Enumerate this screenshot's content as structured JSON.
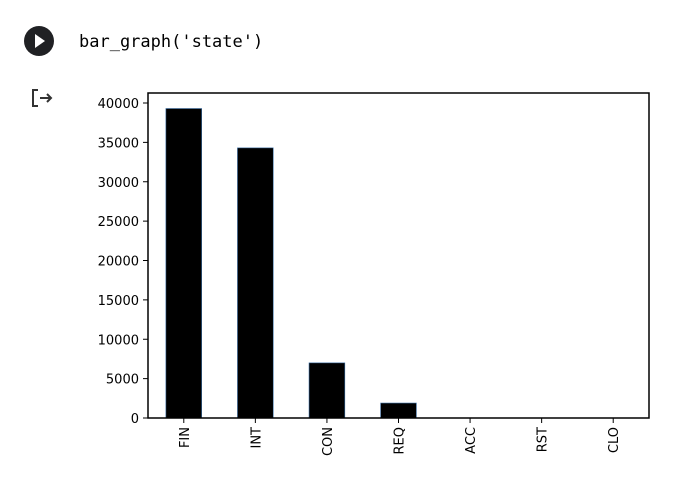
{
  "cell": {
    "code": "bar_graph('state')"
  },
  "chart_data": {
    "type": "bar",
    "categories": [
      "FIN",
      "INT",
      "CON",
      "REQ",
      "ACC",
      "RST",
      "CLO"
    ],
    "values": [
      39300,
      34300,
      7000,
      1900,
      0,
      0,
      0
    ],
    "color": "#000000",
    "ylim": [
      0,
      41270
    ],
    "yticks": [
      0,
      5000,
      10000,
      15000,
      20000,
      25000,
      30000,
      35000,
      40000
    ]
  }
}
